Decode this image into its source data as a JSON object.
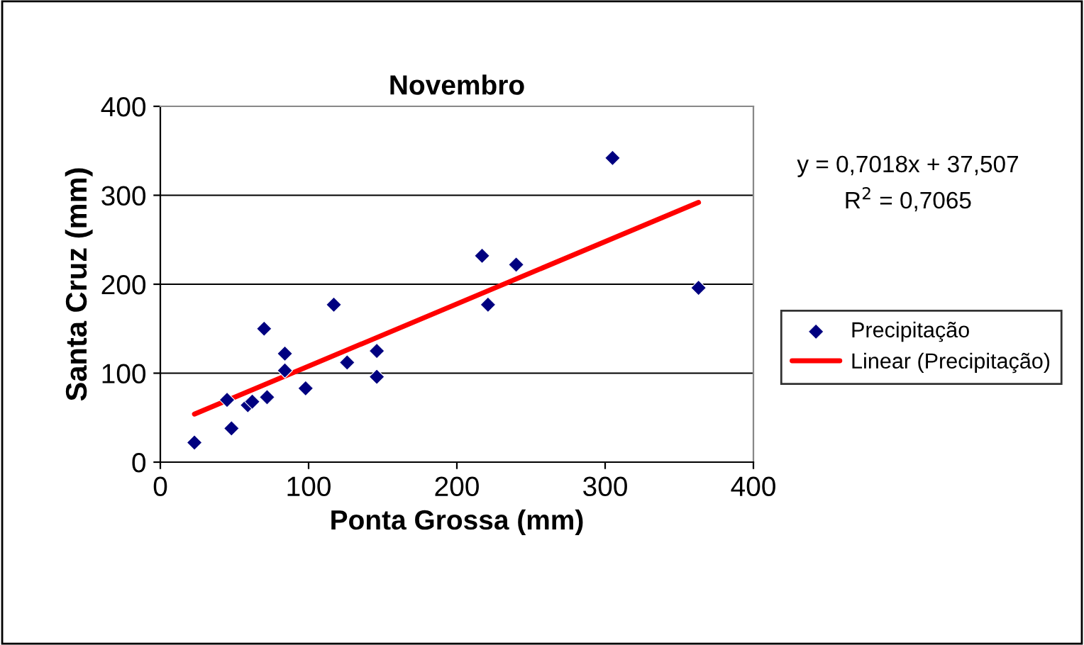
{
  "chart_data": {
    "type": "scatter",
    "title": "Novembro",
    "xlabel": "Ponta Grossa (mm)",
    "ylabel": "Santa Cruz (mm)",
    "xlim": [
      0,
      400
    ],
    "ylim": [
      0,
      400
    ],
    "xticks": [
      0,
      100,
      200,
      300,
      400
    ],
    "yticks": [
      0,
      100,
      200,
      300,
      400
    ],
    "grid": "y",
    "legend": "right",
    "annotations": [
      "y = 0,7018x + 37,507\nR$^{2}$ = 0,7065"
    ],
    "series": [
      {
        "name": "Precipitação",
        "marker": "diamond",
        "color": "#000080",
        "x": [
          23,
          45,
          48,
          59,
          62,
          70,
          72,
          84,
          84,
          98,
          117,
          126,
          146,
          146,
          217,
          221,
          240,
          305,
          363
        ],
        "values": [
          22,
          70,
          38,
          64,
          68,
          150,
          73,
          122,
          103,
          83,
          177,
          112,
          125,
          96,
          232,
          177,
          222,
          342,
          196
        ]
      },
      {
        "name": "Linear (Precipitação)",
        "type": "line",
        "color": "#ff0000",
        "x": [
          23,
          363
        ],
        "values": [
          54,
          292
        ]
      }
    ]
  }
}
